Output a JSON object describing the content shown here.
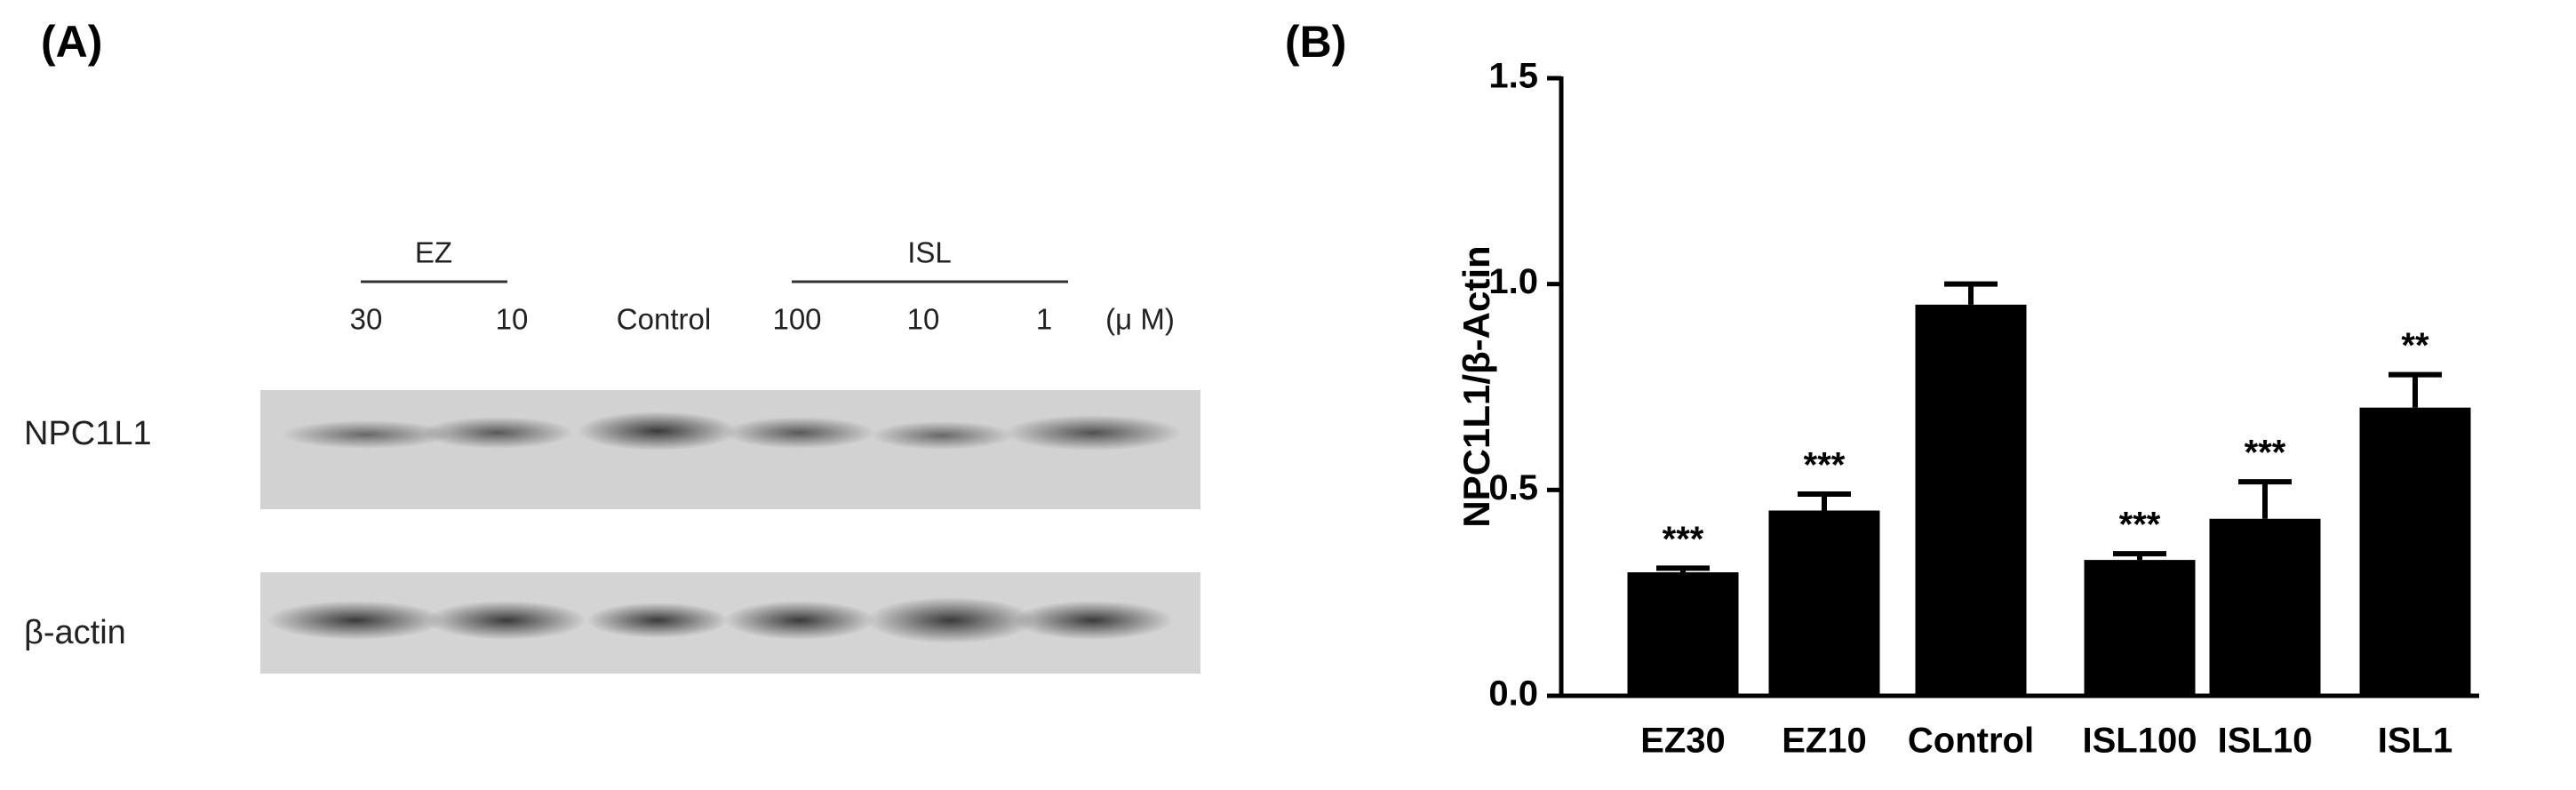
{
  "panel_a": {
    "label": "(A)",
    "groups": [
      "EZ",
      "ISL"
    ],
    "lanes": [
      "30",
      "10",
      "Control",
      "100",
      "10",
      "1"
    ],
    "unit": "(μ M)",
    "rows": [
      "NPC1L1",
      "β-actin"
    ]
  },
  "chart_data": {
    "type": "bar",
    "panel_label": "(B)",
    "y_label": "NPC1L1/β-Actin",
    "categories": [
      "EZ30",
      "EZ10",
      "Control",
      "ISL100",
      "ISL10",
      "ISL1"
    ],
    "values": [
      0.3,
      0.45,
      0.95,
      0.33,
      0.43,
      0.7
    ],
    "errors": [
      0.01,
      0.04,
      0.05,
      0.015,
      0.09,
      0.08
    ],
    "annotations": [
      "***",
      "***",
      null,
      "***",
      "***",
      "**"
    ],
    "color": "#000000",
    "ylim": [
      0,
      1.5
    ],
    "yticks": [
      {
        "value": 0,
        "label": "0.0"
      },
      0.5,
      {
        "value": 1,
        "label": "1.0"
      },
      1.5
    ]
  }
}
